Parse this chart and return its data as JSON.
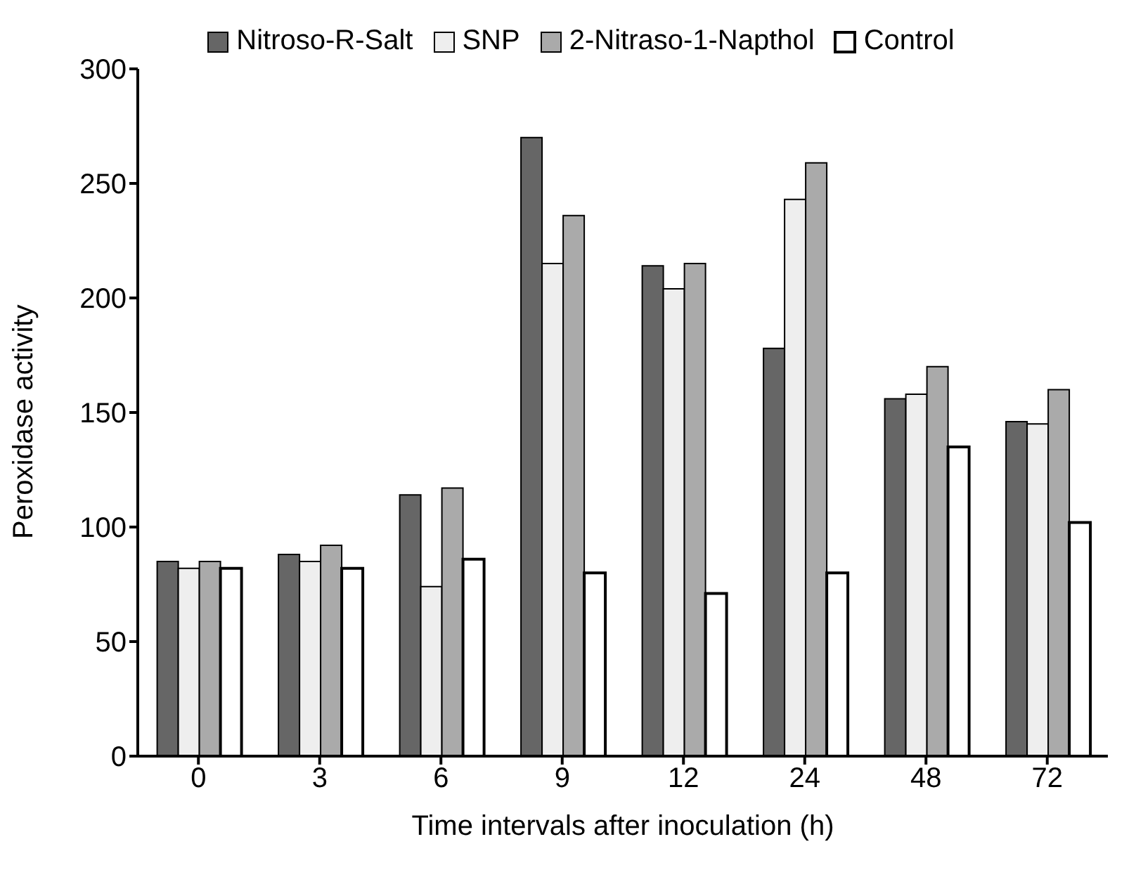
{
  "chart_data": {
    "type": "bar",
    "xlabel": "Time intervals after inoculation (h)",
    "ylabel": "Peroxidase activity",
    "categories": [
      "0",
      "3",
      "6",
      "9",
      "12",
      "24",
      "48",
      "72"
    ],
    "series": [
      {
        "name": "Nitroso-R-Salt",
        "color": "#666666",
        "values": [
          85,
          88,
          114,
          270,
          214,
          178,
          156,
          146
        ]
      },
      {
        "name": "SNP",
        "color": "#eeeeee",
        "values": [
          82,
          85,
          74,
          215,
          204,
          243,
          158,
          145
        ]
      },
      {
        "name": "2-Nitraso-1-Napthol",
        "color": "#aaaaaa",
        "values": [
          85,
          92,
          117,
          236,
          215,
          259,
          170,
          160
        ]
      },
      {
        "name": "Control",
        "color": "#ffffff",
        "values": [
          82,
          82,
          86,
          80,
          71,
          80,
          135,
          102
        ]
      }
    ],
    "ylim": [
      0,
      300
    ],
    "yticks": [
      0,
      50,
      100,
      150,
      200,
      250,
      300
    ],
    "grid": false,
    "legend": "top"
  }
}
